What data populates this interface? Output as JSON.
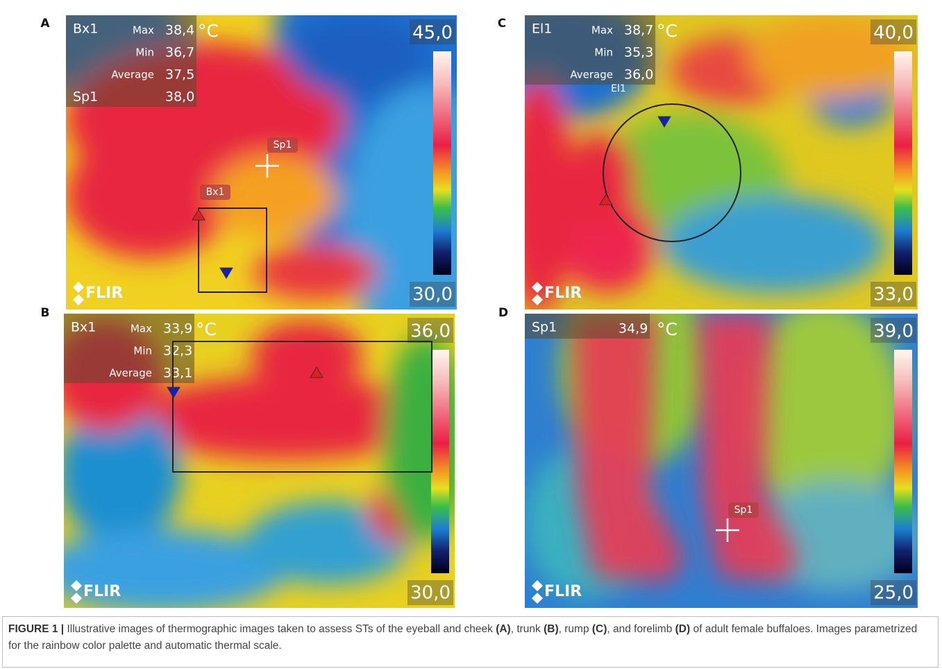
{
  "figure": {
    "panels": [
      {
        "letter": "A",
        "tool": "Bx1",
        "rows": [
          {
            "name": "Max",
            "value": "38,4"
          },
          {
            "name": "Min",
            "value": "36,7"
          },
          {
            "name": "Average",
            "value": "37,5"
          }
        ],
        "unit": "°C",
        "spot": {
          "name": "Sp1",
          "value": "38,0"
        },
        "scale_max": "45,0",
        "scale_min": "30,0",
        "markers": [
          "Sp1",
          "Bx1"
        ],
        "logo": "FLIR"
      },
      {
        "letter": "C",
        "tool": "El1",
        "rows": [
          {
            "name": "Max",
            "value": "38,7"
          },
          {
            "name": "Min",
            "value": "35,3"
          },
          {
            "name": "Average",
            "value": "36,0"
          }
        ],
        "unit": "°C",
        "scale_max": "40,0",
        "scale_min": "33,0",
        "markers": [
          "El1"
        ],
        "logo": "FLIR"
      },
      {
        "letter": "B",
        "tool": "Bx1",
        "rows": [
          {
            "name": "Max",
            "value": "33,9"
          },
          {
            "name": "Min",
            "value": "32,3"
          },
          {
            "name": "Average",
            "value": "33,1"
          }
        ],
        "unit": "°C",
        "scale_max": "36,0",
        "scale_min": "30,0",
        "markers": [],
        "logo": "FLIR"
      },
      {
        "letter": "D",
        "tool": "Sp1",
        "rows": [
          {
            "value": "34,9"
          }
        ],
        "unit": "°C",
        "scale_max": "39,0",
        "scale_min": "25,0",
        "markers": [
          "Sp1"
        ],
        "logo": "FLIR"
      }
    ],
    "caption": [
      {
        "text": "FIGURE 1 |",
        "bold": true
      },
      {
        "text": " Illustrative images of thermographic images taken to assess STs of the eyeball and cheek ",
        "bold": false
      },
      {
        "text": "(A)",
        "bold": true
      },
      {
        "text": ", trunk ",
        "bold": false
      },
      {
        "text": "(B)",
        "bold": true
      },
      {
        "text": ", rump ",
        "bold": false
      },
      {
        "text": "(C)",
        "bold": true
      },
      {
        "text": ", and forelimb ",
        "bold": false
      },
      {
        "text": "(D)",
        "bold": true
      },
      {
        "text": " of adult female buffaloes. Images parametrized for the rainbow color palette and automatic thermal scale.",
        "bold": false
      }
    ]
  }
}
